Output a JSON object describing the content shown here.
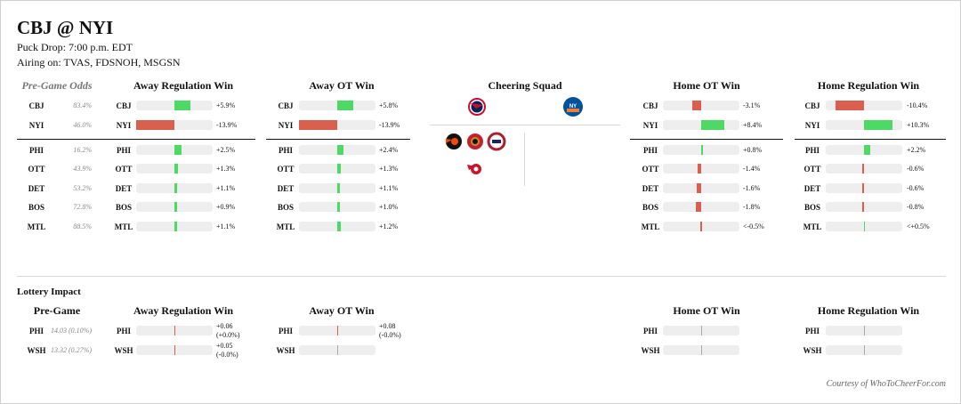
{
  "header": {
    "title": "CBJ @ NYI",
    "puck_drop": "Puck Drop: 7:00 p.m. EDT",
    "airing": "Airing on: TVAS, FDSNOH, MSGSN"
  },
  "pregame_odds": {
    "label": "Pre-Game Odds",
    "rows": [
      {
        "team": "CBJ",
        "value": "83.4%"
      },
      {
        "team": "NYI",
        "value": "46.0%"
      },
      {
        "team": "PHI",
        "value": "16.2%"
      },
      {
        "team": "OTT",
        "value": "43.9%"
      },
      {
        "team": "DET",
        "value": "53.2%"
      },
      {
        "team": "BOS",
        "value": "72.8%"
      },
      {
        "team": "MTL",
        "value": "88.5%"
      }
    ]
  },
  "columns": [
    {
      "title": "Away Regulation Win",
      "rows": [
        {
          "team": "CBJ",
          "label": "+5.9%",
          "v": 5.9
        },
        {
          "team": "NYI",
          "label": "-13.9%",
          "v": -13.9
        },
        {
          "team": "PHI",
          "label": "+2.5%",
          "v": 2.5
        },
        {
          "team": "OTT",
          "label": "+1.3%",
          "v": 1.3
        },
        {
          "team": "DET",
          "label": "+1.1%",
          "v": 1.1
        },
        {
          "team": "BOS",
          "label": "+0.9%",
          "v": 0.9
        },
        {
          "team": "MTL",
          "label": "+1.1%",
          "v": 1.1
        }
      ]
    },
    {
      "title": "Away OT Win",
      "rows": [
        {
          "team": "CBJ",
          "label": "+5.8%",
          "v": 5.8
        },
        {
          "team": "NYI",
          "label": "-13.9%",
          "v": -13.9
        },
        {
          "team": "PHI",
          "label": "+2.4%",
          "v": 2.4
        },
        {
          "team": "OTT",
          "label": "+1.3%",
          "v": 1.3
        },
        {
          "team": "DET",
          "label": "+1.1%",
          "v": 1.1
        },
        {
          "team": "BOS",
          "label": "+1.0%",
          "v": 1.0
        },
        {
          "team": "MTL",
          "label": "+1.2%",
          "v": 1.2
        }
      ]
    },
    {
      "title": "Home OT Win",
      "rows": [
        {
          "team": "CBJ",
          "label": "-3.1%",
          "v": -3.1
        },
        {
          "team": "NYI",
          "label": "+8.4%",
          "v": 8.4
        },
        {
          "team": "PHI",
          "label": "+0.8%",
          "v": 0.8
        },
        {
          "team": "OTT",
          "label": "-1.4%",
          "v": -1.4
        },
        {
          "team": "DET",
          "label": "-1.6%",
          "v": -1.6
        },
        {
          "team": "BOS",
          "label": "-1.8%",
          "v": -1.8
        },
        {
          "team": "MTL",
          "label": "<-0.5%",
          "v": -0.3
        }
      ]
    },
    {
      "title": "Home Regulation Win",
      "rows": [
        {
          "team": "CBJ",
          "label": "-10.4%",
          "v": -10.4
        },
        {
          "team": "NYI",
          "label": "+10.3%",
          "v": 10.3
        },
        {
          "team": "PHI",
          "label": "+2.2%",
          "v": 2.2
        },
        {
          "team": "OTT",
          "label": "-0.6%",
          "v": -0.6
        },
        {
          "team": "DET",
          "label": "-0.6%",
          "v": -0.6
        },
        {
          "team": "BOS",
          "label": "-0.8%",
          "v": -0.8
        },
        {
          "team": "MTL",
          "label": "<+0.5%",
          "v": 0.3
        }
      ]
    }
  ],
  "cheering": {
    "title": "Cheering Squad",
    "away_logos": [
      "blue-jackets-logo-icon"
    ],
    "home_logos": [
      "islanders-logo-icon"
    ],
    "other_logos": [
      "flyers-logo-icon",
      "senators-logo-icon",
      "canadiens-logo-icon",
      "red-wings-logo-icon"
    ]
  },
  "lottery": {
    "title": "Lottery Impact",
    "pregame_label": "Pre-Game",
    "pregame_rows": [
      {
        "team": "PHI",
        "value": "14.03 (0.10%)"
      },
      {
        "team": "WSH",
        "value": "13.32 (0.27%)"
      }
    ],
    "columns": [
      {
        "title": "Away Regulation Win",
        "rows": [
          {
            "team": "PHI",
            "label1": "+0.06",
            "label2": "(+0.0%)",
            "mark": "red"
          },
          {
            "team": "WSH",
            "label1": "+0.05",
            "label2": "(-0.0%)",
            "mark": "red"
          }
        ]
      },
      {
        "title": "Away OT Win",
        "rows": [
          {
            "team": "PHI",
            "label1": "+0.08",
            "label2": "(-0.0%)",
            "mark": "red"
          },
          {
            "team": "WSH",
            "label1": "",
            "label2": "",
            "mark": "gray"
          }
        ]
      },
      {
        "title": "Home OT Win",
        "rows": [
          {
            "team": "PHI",
            "label1": "",
            "label2": "",
            "mark": "gray"
          },
          {
            "team": "WSH",
            "label1": "",
            "label2": "",
            "mark": "gray"
          }
        ]
      },
      {
        "title": "Home Regulation Win",
        "rows": [
          {
            "team": "PHI",
            "label1": "",
            "label2": "",
            "mark": "gray"
          },
          {
            "team": "WSH",
            "label1": "",
            "label2": "",
            "mark": "gray"
          }
        ]
      }
    ]
  },
  "footer": {
    "courtesy": "Courtesy of WhoToCheerFor.com"
  },
  "colors": {
    "positive": "#4cd964",
    "negative": "#d9604f",
    "track": "#eeeeee"
  }
}
